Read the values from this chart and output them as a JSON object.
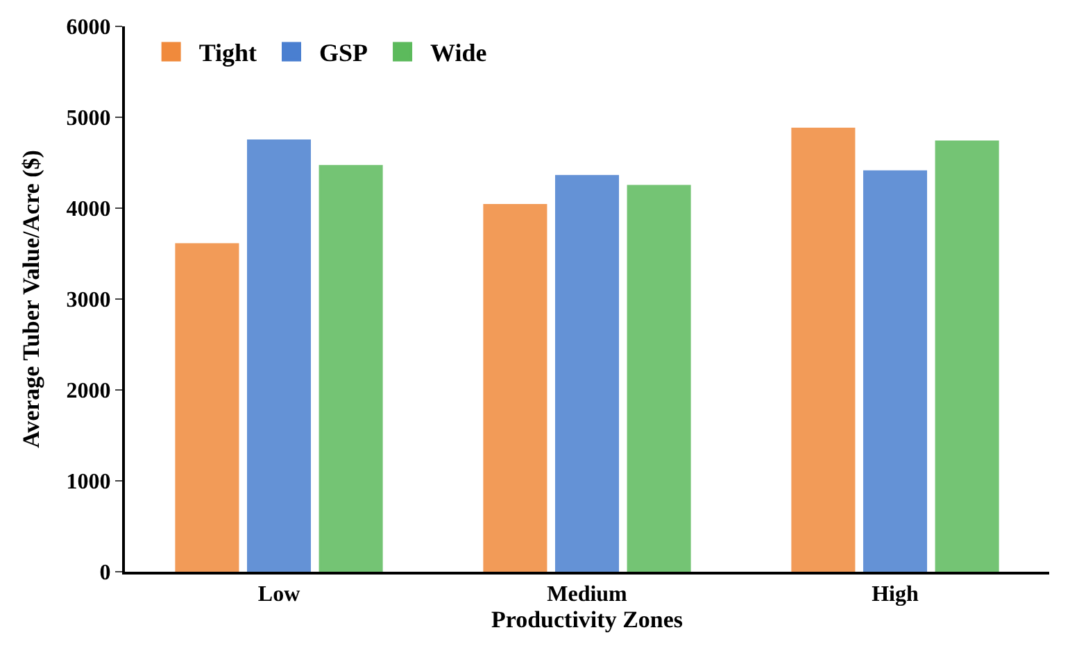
{
  "chart_data": {
    "type": "bar",
    "xlabel": "Productivity Zones",
    "ylabel": "Average Tuber Value/Acre ($)",
    "categories": [
      "Low",
      "Medium",
      "High"
    ],
    "series": [
      {
        "name": "Tight",
        "color": "#f08a3c",
        "values": [
          3600,
          4030,
          4870
        ]
      },
      {
        "name": "GSP",
        "color": "#4a7fd0",
        "values": [
          4740,
          4350,
          4400
        ]
      },
      {
        "name": "Wide",
        "color": "#5cba5c",
        "values": [
          4460,
          4240,
          4730
        ]
      }
    ],
    "ylim": [
      0,
      6000
    ],
    "yticks": [
      0,
      1000,
      2000,
      3000,
      4000,
      5000,
      6000
    ],
    "legend": "top left"
  }
}
